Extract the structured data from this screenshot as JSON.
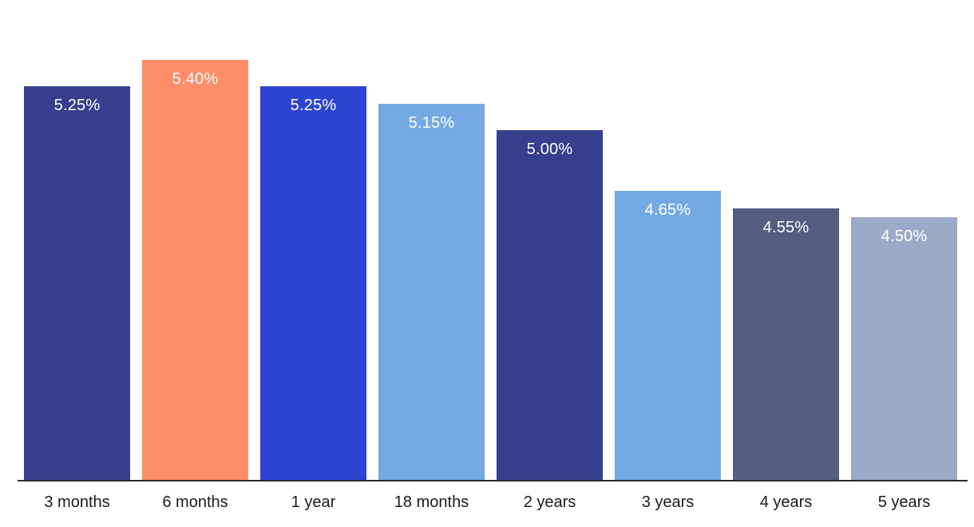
{
  "chart_data": {
    "type": "bar",
    "title": "",
    "xlabel": "",
    "ylabel": "",
    "categories": [
      "3 months",
      "6 months",
      "1 year",
      "18 months",
      "2 years",
      "3 years",
      "4 years",
      "5 years"
    ],
    "values": [
      5.25,
      5.4,
      5.25,
      5.15,
      5.0,
      4.65,
      4.55,
      4.5
    ],
    "value_labels": [
      "5.25%",
      "5.40%",
      "5.25%",
      "5.15%",
      "5.00%",
      "4.65%",
      "4.55%",
      "4.50%"
    ],
    "bar_colors": [
      "#353f8d",
      "#fc8d68",
      "#2d44d1",
      "#74a9e2",
      "#353f8d",
      "#74a9e2",
      "#565e80",
      "#9baac6"
    ],
    "ylim": [
      3.0,
      5.4
    ],
    "grid": false,
    "legend": "none",
    "value_label_color": "#ffffff",
    "tick_label_color": "#1a1a1a",
    "axis_line_color": "#2d2d2d",
    "background_color": "#ffffff"
  }
}
